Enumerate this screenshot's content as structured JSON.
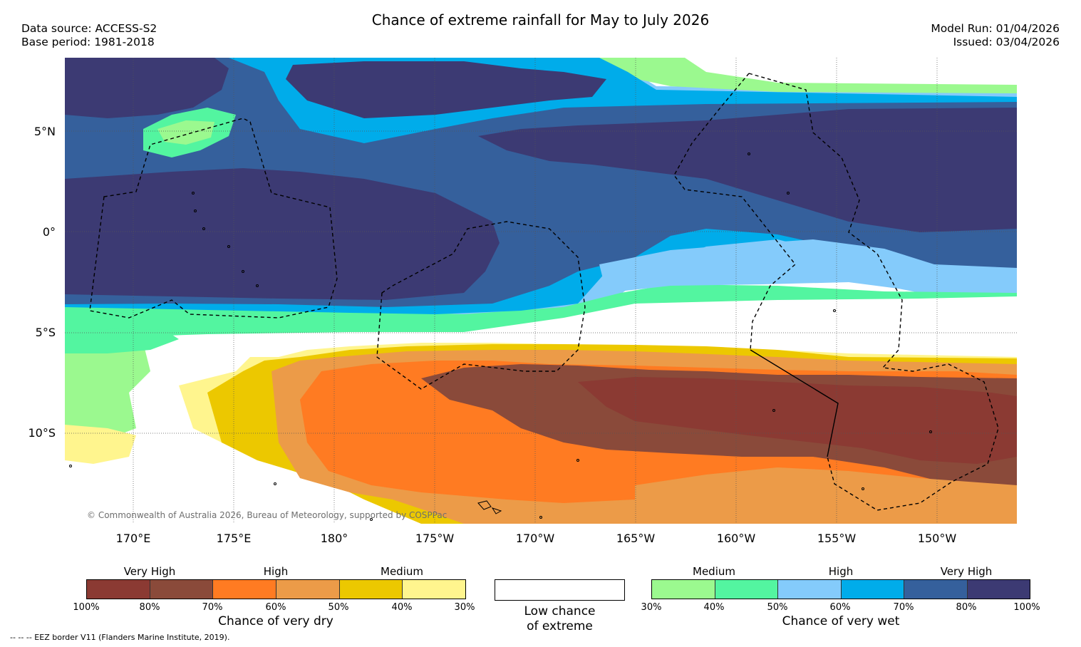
{
  "header": {
    "title": "Chance of extreme rainfall for May to July 2026",
    "data_source": "Data source: ACCESS-S2",
    "base_period": "Base period: 1981-2018",
    "model_run": "Model Run: 01/04/2026",
    "issued": "Issued: 03/04/2026"
  },
  "map": {
    "lat_labels": [
      "5°N",
      "0°",
      "5°S",
      "10°S"
    ],
    "lon_labels": [
      "170°E",
      "175°E",
      "180°",
      "175°W",
      "170°W",
      "165°W",
      "160°W",
      "155°W",
      "150°W"
    ],
    "copyright": "© Commonwealth of Australia 2026, Bureau of Meteorology, supported by COSPPac",
    "colors": {
      "dry_100_90": "#8b3a33",
      "dry_90_80": "#8a4a3a",
      "dry_70_60": "#ff7b22",
      "dry_60_50": "#ec9b48",
      "dry_50_40": "#ecc800",
      "dry_40_30": "#fff58e",
      "wet_30_40": "#9bf98f",
      "wet_40_50": "#53f5a0",
      "wet_50_60": "#84cbfb",
      "wet_60_70": "#00acea",
      "wet_70_80": "#35609c",
      "wet_80_100": "#3c3a73"
    }
  },
  "legend": {
    "dry": {
      "categories": [
        "Very High",
        "High",
        "Medium"
      ],
      "colors": [
        "#8b3a33",
        "#8a4a3a",
        "#ff7b22",
        "#ec9b48",
        "#ecc800",
        "#fff58e"
      ],
      "ticks": [
        "100%",
        "80%",
        "70%",
        "60%",
        "50%",
        "40%",
        "30%"
      ],
      "caption": "Chance of very dry"
    },
    "low": {
      "caption_line1": "Low chance",
      "caption_line2": "of extreme"
    },
    "wet": {
      "categories": [
        "Medium",
        "High",
        "Very High"
      ],
      "colors": [
        "#9bf98f",
        "#53f5a0",
        "#84cbfb",
        "#00acea",
        "#35609c",
        "#3c3a73"
      ],
      "ticks": [
        "30%",
        "40%",
        "50%",
        "60%",
        "70%",
        "80%",
        "100%"
      ],
      "caption": "Chance of very wet"
    }
  },
  "footer": {
    "eez_note": "--  --  -- EEZ border V11 (Flanders Marine Institute, 2019)."
  }
}
